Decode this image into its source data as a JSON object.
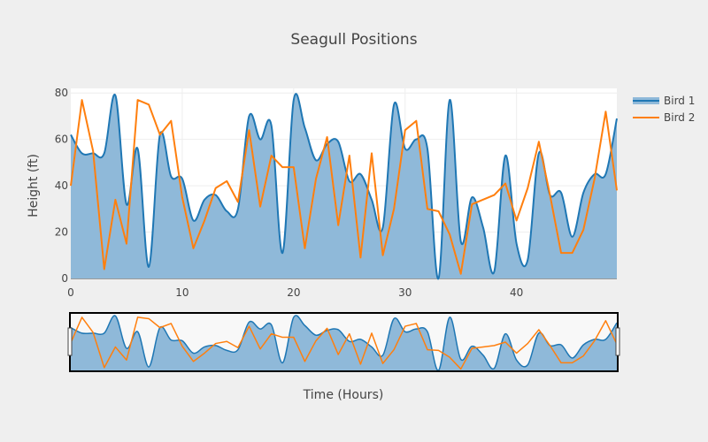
{
  "chart_data": {
    "type": "line",
    "title": "Seagull Positions",
    "xlabel": "Time (Hours)",
    "ylabel": "Height (ft)",
    "xlim": [
      0,
      49
    ],
    "ylim": [
      0,
      82
    ],
    "x_ticks": [
      0,
      10,
      20,
      30,
      40
    ],
    "y_ticks": [
      0,
      20,
      40,
      60,
      80
    ],
    "grid": true,
    "legend_position": "top-right",
    "range_slider": true,
    "x": [
      0,
      1,
      2,
      3,
      4,
      5,
      6,
      7,
      8,
      9,
      10,
      11,
      12,
      13,
      14,
      15,
      16,
      17,
      18,
      19,
      20,
      21,
      22,
      23,
      24,
      25,
      26,
      27,
      28,
      29,
      30,
      31,
      32,
      33,
      34,
      35,
      36,
      37,
      38,
      39,
      40,
      41,
      42,
      43,
      44,
      45,
      46,
      47,
      48,
      49
    ],
    "series": [
      {
        "name": "Bird 1",
        "color": "#1f77b4",
        "fill": "#8fb9d9",
        "shape": "spline",
        "filled": true,
        "values": [
          62,
          54,
          54,
          54,
          79,
          32,
          56,
          5,
          62,
          44,
          43,
          25,
          34,
          36,
          29,
          30,
          70,
          60,
          66,
          11,
          77,
          65,
          51,
          58,
          59,
          42,
          45,
          34,
          22,
          75,
          56,
          60,
          56,
          0,
          77,
          16,
          35,
          22,
          3,
          53,
          15,
          8,
          54,
          36,
          37,
          18,
          37,
          45,
          45,
          69
        ]
      },
      {
        "name": "Bird 2",
        "color": "#ff7f0e",
        "shape": "linear",
        "filled": false,
        "values": [
          40,
          77,
          55,
          4,
          34,
          15,
          77,
          75,
          62,
          68,
          35,
          13,
          25,
          39,
          42,
          33,
          64,
          31,
          53,
          48,
          48,
          13,
          43,
          61,
          23,
          53,
          9,
          54,
          10,
          30,
          64,
          68,
          30,
          29,
          19,
          2,
          32,
          34,
          36,
          41,
          25,
          39,
          59,
          36,
          11,
          11,
          21,
          43,
          72,
          38
        ]
      }
    ]
  }
}
